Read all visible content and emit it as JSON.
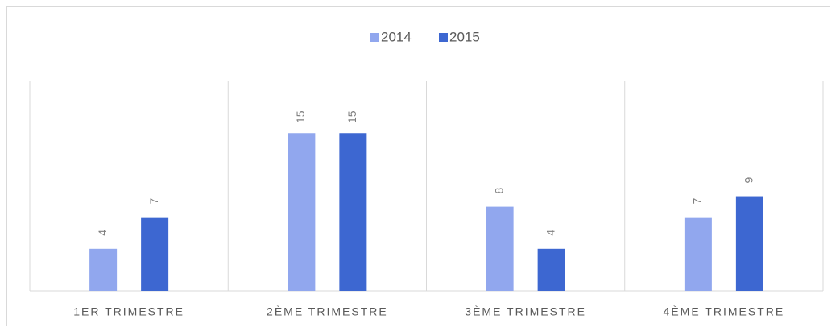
{
  "chart_data": {
    "type": "bar",
    "categories": [
      "1ER TRIMESTRE",
      "2ÈME TRIMESTRE",
      "3ÈME TRIMESTRE",
      "4ÈME TRIMESTRE"
    ],
    "series": [
      {
        "name": "2014",
        "color": "#91a7ee",
        "values": [
          4,
          15,
          8,
          7
        ]
      },
      {
        "name": "2015",
        "color": "#3d67d1",
        "values": [
          7,
          15,
          4,
          9
        ]
      }
    ],
    "ylim": [
      0,
      20
    ],
    "legend": "top"
  }
}
